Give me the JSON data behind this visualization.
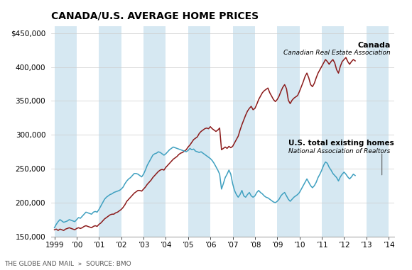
{
  "title": "CANADA/U.S. AVERAGE HOME PRICES",
  "footer": "THE GLOBE AND MAIL  »  SOURCE: BMO",
  "canada_label": "Canada",
  "canada_sublabel": "Canadian Real Estate Association",
  "us_label": "U.S. total existing homes",
  "us_sublabel": "National Association of Realtors",
  "canada_color": "#8B1A1A",
  "us_color": "#3FA0C0",
  "bg_stripe_color": "#D6E8F2",
  "ylim": [
    150000,
    460000
  ],
  "yticks": [
    150000,
    200000,
    250000,
    300000,
    350000,
    400000,
    450000
  ],
  "xlim_left": 1998.85,
  "xlim_right": 2014.25,
  "stripe_years": [
    1999,
    2001,
    2003,
    2005,
    2007,
    2009,
    2011,
    2013
  ],
  "canada_data": [
    160000,
    161000,
    159000,
    161000,
    160000,
    159000,
    161000,
    162000,
    163000,
    162000,
    161000,
    160000,
    162000,
    163000,
    162000,
    163000,
    165000,
    166000,
    165000,
    164000,
    163000,
    165000,
    166000,
    165000,
    168000,
    170000,
    173000,
    176000,
    178000,
    180000,
    182000,
    183000,
    183000,
    185000,
    186000,
    188000,
    190000,
    193000,
    197000,
    202000,
    205000,
    208000,
    211000,
    214000,
    216000,
    218000,
    218000,
    217000,
    220000,
    223000,
    227000,
    230000,
    233000,
    237000,
    240000,
    243000,
    246000,
    248000,
    249000,
    248000,
    252000,
    255000,
    258000,
    261000,
    264000,
    266000,
    268000,
    271000,
    273000,
    274000,
    276000,
    278000,
    282000,
    285000,
    289000,
    293000,
    295000,
    297000,
    302000,
    305000,
    307000,
    309000,
    310000,
    309000,
    312000,
    309000,
    307000,
    305000,
    307000,
    310000,
    278000,
    280000,
    282000,
    280000,
    283000,
    281000,
    283000,
    288000,
    293000,
    298000,
    307000,
    315000,
    322000,
    329000,
    335000,
    339000,
    342000,
    337000,
    339000,
    345000,
    352000,
    357000,
    362000,
    365000,
    367000,
    369000,
    362000,
    357000,
    352000,
    349000,
    352000,
    357000,
    364000,
    370000,
    374000,
    368000,
    351000,
    346000,
    351000,
    354000,
    356000,
    358000,
    364000,
    371000,
    378000,
    386000,
    391000,
    384000,
    374000,
    371000,
    376000,
    384000,
    391000,
    396000,
    401000,
    406000,
    411000,
    408000,
    404000,
    408000,
    411000,
    406000,
    396000,
    391000,
    401000,
    408000,
    411000,
    414000,
    408000,
    404000,
    408000,
    411000,
    409000
  ],
  "us_data": [
    163000,
    168000,
    172000,
    175000,
    173000,
    171000,
    172000,
    173000,
    175000,
    174000,
    173000,
    172000,
    175000,
    178000,
    177000,
    180000,
    183000,
    186000,
    185000,
    184000,
    183000,
    186000,
    187000,
    186000,
    190000,
    195000,
    200000,
    205000,
    208000,
    210000,
    212000,
    213000,
    215000,
    216000,
    217000,
    218000,
    220000,
    223000,
    228000,
    232000,
    235000,
    237000,
    240000,
    243000,
    243000,
    242000,
    240000,
    238000,
    242000,
    248000,
    255000,
    260000,
    265000,
    270000,
    272000,
    273000,
    275000,
    274000,
    272000,
    270000,
    272000,
    275000,
    278000,
    280000,
    282000,
    281000,
    280000,
    279000,
    278000,
    277000,
    276000,
    275000,
    277000,
    280000,
    278000,
    279000,
    276000,
    275000,
    274000,
    275000,
    273000,
    271000,
    269000,
    267000,
    265000,
    262000,
    258000,
    253000,
    248000,
    242000,
    220000,
    228000,
    237000,
    242000,
    248000,
    242000,
    228000,
    218000,
    212000,
    208000,
    212000,
    218000,
    210000,
    208000,
    212000,
    215000,
    210000,
    208000,
    210000,
    215000,
    218000,
    215000,
    213000,
    210000,
    208000,
    207000,
    205000,
    203000,
    201000,
    200000,
    202000,
    205000,
    210000,
    213000,
    215000,
    210000,
    205000,
    202000,
    205000,
    208000,
    210000,
    212000,
    215000,
    220000,
    225000,
    230000,
    235000,
    230000,
    225000,
    222000,
    225000,
    230000,
    237000,
    242000,
    248000,
    255000,
    260000,
    258000,
    252000,
    248000,
    243000,
    240000,
    237000,
    232000,
    238000,
    242000,
    245000,
    242000,
    238000,
    235000,
    238000,
    242000,
    240000
  ]
}
